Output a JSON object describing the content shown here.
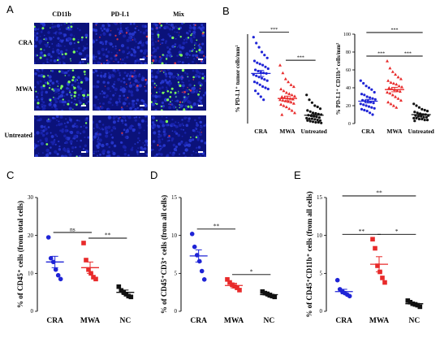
{
  "panels": {
    "A": "A",
    "B": "B",
    "C": "C",
    "D": "D",
    "E": "E"
  },
  "panel_a": {
    "columns": [
      "CD11b",
      "PD-L1",
      "Mix"
    ],
    "rows": [
      "CRA",
      "MWA",
      "Untreated"
    ]
  },
  "colors": {
    "cra": "#1f24d6",
    "mwa": "#e82a2a",
    "nc": "#111111",
    "tile_bg": "#0b127a",
    "green": "#7dff5a",
    "red": "#ff4040"
  },
  "chart_data": [
    {
      "id": "B1",
      "type": "scatter",
      "ylabel": "% PD-L1⁺ tumor cells/mm²",
      "categories": [
        "CRA",
        "MWA",
        "Untreated"
      ],
      "ylim": [
        0,
        150
      ],
      "yticks": [],
      "means": [
        84,
        42,
        14
      ],
      "sems": [
        5,
        4,
        2
      ],
      "series": [
        {
          "values": [
            145,
            135,
            128,
            120,
            115,
            110,
            105,
            102,
            100,
            98,
            95,
            92,
            90,
            88,
            86,
            85,
            84,
            82,
            80,
            78,
            76,
            74,
            72,
            70,
            68,
            65,
            62,
            60,
            58,
            55,
            50,
            45,
            40
          ]
        },
        {
          "values": [
            98,
            85,
            75,
            70,
            65,
            62,
            58,
            55,
            52,
            50,
            48,
            46,
            45,
            44,
            43,
            42,
            41,
            40,
            39,
            38,
            37,
            36,
            34,
            32,
            30,
            28,
            25,
            22,
            18,
            15
          ]
        },
        {
          "values": [
            48,
            40,
            35,
            30,
            28,
            25,
            22,
            20,
            18,
            17,
            16,
            15,
            14,
            13,
            12,
            11,
            10,
            9,
            8,
            8,
            7,
            6,
            5,
            5,
            4,
            3,
            2,
            2,
            1
          ]
        }
      ],
      "significance": [
        {
          "from": 0,
          "to": 1,
          "label": "***"
        },
        {
          "from": 1,
          "to": 2,
          "label": "***"
        }
      ]
    },
    {
      "id": "B2",
      "type": "scatter",
      "ylabel": "% PD-L1⁺ CD11b⁺ cells/mm²",
      "categories": [
        "CRA",
        "MWA",
        "Untreated"
      ],
      "ylim": [
        0,
        100
      ],
      "yticks": [
        0,
        20,
        40,
        60,
        80,
        100
      ],
      "means": [
        25,
        38,
        10
      ],
      "sems": [
        2,
        2.5,
        1
      ],
      "series": [
        {
          "values": [
            48,
            45,
            42,
            40,
            38,
            35,
            33,
            32,
            30,
            29,
            28,
            27,
            26,
            25,
            25,
            24,
            23,
            22,
            21,
            20,
            19,
            18,
            17,
            16,
            15,
            14,
            12,
            10
          ]
        },
        {
          "values": [
            70,
            62,
            58,
            55,
            52,
            50,
            48,
            46,
            45,
            44,
            42,
            41,
            40,
            39,
            38,
            37,
            36,
            35,
            34,
            32,
            30,
            28,
            26,
            24,
            22,
            20,
            18
          ]
        },
        {
          "values": [
            22,
            20,
            18,
            16,
            15,
            14,
            13,
            12,
            11,
            10,
            10,
            9,
            9,
            8,
            8,
            7,
            7,
            6,
            6,
            5,
            5,
            4,
            4,
            3
          ]
        }
      ],
      "significance": [
        {
          "from": 0,
          "to": 2,
          "label": "***"
        },
        {
          "from": 0,
          "to": 1,
          "label": "***"
        },
        {
          "from": 1,
          "to": 2,
          "label": "***"
        }
      ]
    },
    {
      "id": "C",
      "type": "scatter",
      "ylabel": "% of CD45⁺ cells (from total cells)",
      "categories": [
        "CRA",
        "MWA",
        "NC"
      ],
      "ylim": [
        0,
        30
      ],
      "yticks": [
        0,
        10,
        20,
        30
      ],
      "means": [
        13,
        11.5,
        5
      ],
      "sems": [
        1.5,
        1.5,
        0.6
      ],
      "series": [
        {
          "values": [
            19.5,
            14,
            13,
            11,
            9.5,
            8.5
          ]
        },
        {
          "values": [
            18,
            13.5,
            11,
            10,
            9,
            8.5
          ]
        },
        {
          "values": [
            6.5,
            5.5,
            5,
            4.5,
            4,
            3.8
          ]
        }
      ],
      "significance": [
        {
          "from": 0,
          "to": 1,
          "label": "ns"
        },
        {
          "from": 1,
          "to": 2,
          "label": "**"
        }
      ]
    },
    {
      "id": "D",
      "type": "scatter",
      "ylabel": "% of CD45⁺CD3⁺ cells (from all cells)",
      "categories": [
        "CRA",
        "MWA",
        "NC"
      ],
      "ylim": [
        0,
        15
      ],
      "yticks": [
        0,
        5,
        10,
        15
      ],
      "means": [
        7.3,
        3.4,
        2.2
      ],
      "sems": [
        0.8,
        0.3,
        0.2
      ],
      "series": [
        {
          "values": [
            10.2,
            8.5,
            7.4,
            6.6,
            5.3,
            4.2
          ]
        },
        {
          "values": [
            4.2,
            3.8,
            3.5,
            3.3,
            3.1,
            2.8
          ]
        },
        {
          "values": [
            2.6,
            2.4,
            2.3,
            2.1,
            2.0,
            1.9
          ]
        }
      ],
      "significance": [
        {
          "from": 0,
          "to": 1,
          "label": "**"
        },
        {
          "from": 1,
          "to": 2,
          "label": "*"
        }
      ]
    },
    {
      "id": "E",
      "type": "scatter",
      "ylabel": "% of CD45⁺CD11b⁺ cells (from all cells)",
      "categories": [
        "CRA",
        "MWA",
        "NC"
      ],
      "ylim": [
        0,
        15
      ],
      "yticks": [
        0,
        5,
        10,
        15
      ],
      "means": [
        2.6,
        6.2,
        1.0
      ],
      "sems": [
        0.3,
        1.0,
        0.15
      ],
      "series": [
        {
          "values": [
            4.1,
            2.9,
            2.6,
            2.4,
            2.2,
            2.0
          ]
        },
        {
          "values": [
            9.5,
            8.3,
            6.0,
            5.2,
            4.4,
            3.8
          ]
        },
        {
          "values": [
            1.4,
            1.2,
            1.0,
            0.9,
            0.8,
            0.6
          ]
        }
      ],
      "significance": [
        {
          "from": 0,
          "to": 2,
          "label": "**"
        },
        {
          "from": 0,
          "to": 1,
          "label": "**"
        },
        {
          "from": 1,
          "to": 2,
          "label": "*"
        }
      ]
    }
  ]
}
